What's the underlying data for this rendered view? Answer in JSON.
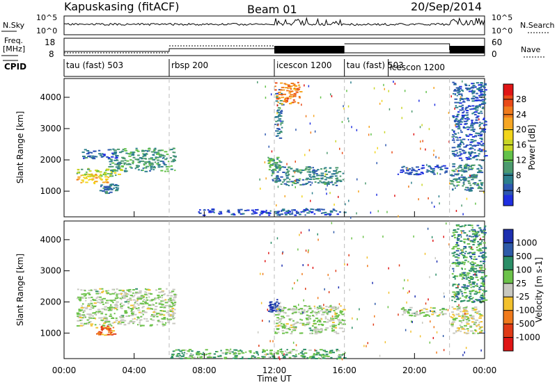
{
  "header": {
    "station": "Kapuskasing (fitACF)",
    "beam": "Beam 01",
    "date": "20/Sep/2014"
  },
  "strips": {
    "nsky_label": "N.Sky",
    "nsky_ticks": [
      "10^5",
      "10^0"
    ],
    "nsearch_label": "N.Search",
    "freq_label_1": "Freq.",
    "freq_label_2": "[MHz]",
    "freq_ticks": [
      "18",
      "8"
    ],
    "nave_label": "Nave",
    "nave_ticks": [
      "60",
      "0"
    ],
    "cpid_label": "CPID",
    "cpid_segments": [
      {
        "label": "tau (fast) 503",
        "start": 0,
        "end": 6
      },
      {
        "label": "rbsp 200",
        "start": 6,
        "end": 12
      },
      {
        "label": "icescon 1200",
        "start": 12,
        "end": 16
      },
      {
        "label": "tau (fast) 503",
        "start": 16,
        "end": 22
      },
      {
        "label": "icescon 1200",
        "start": 18.5,
        "end": 22
      }
    ]
  },
  "chart_data": [
    {
      "type": "heatmap",
      "panel": "power",
      "xlabel": "",
      "ylabel": "Slant Range [km]",
      "xlim": [
        0,
        24
      ],
      "ylim": [
        180,
        4600
      ],
      "yticks": [
        1000,
        2000,
        3000,
        4000
      ],
      "colorbar_label": "Power [dB]",
      "colorbar_ticks": [
        "4",
        "8",
        "12",
        "16",
        "20",
        "24",
        "28"
      ],
      "colorbar_colors": [
        "#1f2fe0",
        "#2d58b0",
        "#2c7f8c",
        "#4c9a6f",
        "#63c24a",
        "#c9d625",
        "#f2d51b",
        "#f6a623",
        "#f07b1c",
        "#e94a17",
        "#e01515"
      ],
      "regions": [
        {
          "t0": 0.7,
          "t1": 2.5,
          "r0": 1250,
          "r1": 1600,
          "level": 0.65
        },
        {
          "t0": 0.7,
          "t1": 3.2,
          "r0": 1500,
          "r1": 1750,
          "level": 0.45
        },
        {
          "t0": 2.5,
          "t1": 6.3,
          "r0": 1650,
          "r1": 2400,
          "level": 0.3
        },
        {
          "t0": 1.0,
          "t1": 3.0,
          "r0": 2050,
          "r1": 2350,
          "level": 0.15
        },
        {
          "t0": 2.0,
          "t1": 3.0,
          "r0": 950,
          "r1": 1250,
          "level": 0.2
        },
        {
          "t0": 11.6,
          "t1": 12.3,
          "r0": 1700,
          "r1": 2100,
          "level": 0.35
        },
        {
          "t0": 11.8,
          "t1": 15.9,
          "r0": 1200,
          "r1": 1800,
          "level": 0.25
        },
        {
          "t0": 12.0,
          "t1": 12.4,
          "r0": 2700,
          "r1": 4300,
          "level": 0.2
        },
        {
          "t0": 19.0,
          "t1": 21.8,
          "r0": 1550,
          "r1": 1850,
          "level": 0.1
        },
        {
          "t0": 22.0,
          "t1": 23.8,
          "r0": 1000,
          "r1": 1900,
          "level": 0.25
        },
        {
          "t0": 22.1,
          "t1": 24.0,
          "r0": 2000,
          "r1": 4500,
          "level": 0.15
        },
        {
          "t0": 7.5,
          "t1": 16.0,
          "r0": 250,
          "r1": 450,
          "level": 0.1
        },
        {
          "t0": 12.0,
          "t1": 13.5,
          "r0": 3800,
          "r1": 4500,
          "level": 0.75
        }
      ]
    },
    {
      "type": "heatmap",
      "panel": "velocity",
      "xlabel": "Time UT",
      "ylabel": "Slant Range [km]",
      "xlim": [
        0,
        24
      ],
      "ylim": [
        180,
        4600
      ],
      "yticks": [
        1000,
        2000,
        3000,
        4000
      ],
      "xticks": [
        "00:00",
        "04:00",
        "08:00",
        "12:00",
        "16:00",
        "20:00",
        "00:00"
      ],
      "colorbar_label": "Velocity [m s-1]",
      "colorbar_ticks": [
        "1000",
        "500",
        "100",
        "25",
        "-25",
        "-100",
        "-500",
        "-1000"
      ],
      "colorbar_colors": [
        "#1d2fb0",
        "#2e5aa8",
        "#2b8e67",
        "#6cc24a",
        "#c8c8c0",
        "#f2c12e",
        "#f07a1c",
        "#e03a16",
        "#e01515"
      ],
      "regions": [
        {
          "t0": 0.7,
          "t1": 6.3,
          "r0": 1250,
          "r1": 2450,
          "level": 0.45
        },
        {
          "t0": 1.8,
          "t1": 2.8,
          "r0": 950,
          "r1": 1250,
          "level": 0.75
        },
        {
          "t0": 11.6,
          "t1": 12.3,
          "r0": 1700,
          "r1": 2100,
          "level": 0.1
        },
        {
          "t0": 12.0,
          "t1": 15.9,
          "r0": 1000,
          "r1": 1900,
          "level": 0.45
        },
        {
          "t0": 19.2,
          "t1": 21.8,
          "r0": 1550,
          "r1": 1850,
          "level": 0.45
        },
        {
          "t0": 22.0,
          "t1": 23.8,
          "r0": 1000,
          "r1": 1900,
          "level": 0.5
        },
        {
          "t0": 6.0,
          "t1": 16.0,
          "r0": 200,
          "r1": 500,
          "level": 0.35
        },
        {
          "t0": 22.1,
          "t1": 24.0,
          "r0": 2000,
          "r1": 4500,
          "level": 0.3
        }
      ]
    }
  ]
}
